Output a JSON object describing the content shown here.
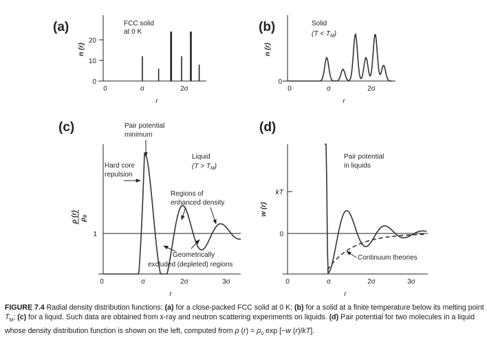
{
  "panels": {
    "a": {
      "letter": "(a)",
      "ylabel": "n (r)",
      "annotation": [
        "FCC solid",
        "at 0 K"
      ],
      "xticks": [
        "0",
        "σ",
        "2σ"
      ],
      "yticks": [
        "0",
        "10",
        "20"
      ],
      "xlabel": "r"
    },
    "b": {
      "letter": "(b)",
      "ylabel": "n (r)",
      "annotation": [
        "Solid",
        "(T < T",
        "M",
        ")"
      ],
      "xticks": [
        "0",
        "σ",
        "2σ"
      ],
      "yticks": [
        "0"
      ],
      "xlabel": "r"
    },
    "c": {
      "letter": "(c)",
      "ylabel_num": "ρ (r)",
      "ylabel_den": "ρ",
      "ylabel_den_sub": "0",
      "yticks": [
        "1"
      ],
      "xticks": [
        "0",
        "σ",
        "2σ",
        "3σ"
      ],
      "xlabel": "r",
      "ann_min": [
        "Pair potential",
        "minimum"
      ],
      "ann_hard": [
        "Hard core",
        "repulsion"
      ],
      "ann_liquid": [
        "Liquid",
        "(T > T",
        "M",
        ")"
      ],
      "ann_enh": [
        "Regions of",
        "enhanced density"
      ],
      "ann_geo": [
        "Geometrically",
        "excluded (depleted) regions"
      ]
    },
    "d": {
      "letter": "(d)",
      "ylabel": "w (r)",
      "yticks": [
        "kT",
        "0"
      ],
      "xticks": [
        "0",
        "σ",
        "2σ",
        "3σ"
      ],
      "xlabel": "r",
      "ann_pair": [
        "Pair potential",
        "in liquids"
      ],
      "ann_cont": "Continuum theories"
    }
  },
  "caption": {
    "label": "FIGURE 7.4",
    "lines": [
      "Radial density distribution functions: (a) for a close-packed FCC solid at 0 K; (b) for a solid at a finite",
      "temperature below its melting point T_M; (c) for a liquid. Such data are obtained from x-ray and neutron scattering",
      "experiments on liquids. (d) Pair potential for two molecules in a liquid whose density distribution function is shown on",
      "the left, computed from ρ (r) = ρ₀ exp [−w (r)/kT]."
    ]
  },
  "chart_data": [
    {
      "type": "bar",
      "panel": "a",
      "x": [
        "σ",
        "√2σ",
        "√3σ",
        "2σ",
        "√5σ",
        "√6σ"
      ],
      "x_sigma": [
        1.0,
        1.414,
        1.732,
        2.0,
        2.236,
        2.449
      ],
      "values": [
        12,
        6,
        24,
        12,
        24,
        8
      ],
      "xlabel": "r",
      "ylabel": "n (r)",
      "ylim": [
        0,
        25
      ]
    },
    {
      "type": "line",
      "panel": "b",
      "peaks_x_sigma": [
        1.0,
        1.414,
        1.732,
        2.0,
        2.236,
        2.449
      ],
      "peaks_height": [
        12,
        6,
        24,
        12,
        24,
        8
      ],
      "xlabel": "r",
      "ylabel": "n (r)"
    },
    {
      "type": "line",
      "panel": "c",
      "baseline": 1,
      "first_peak_x_sigma": 1.03,
      "xlabel": "r",
      "ylabel": "ρ (r)/ρ0"
    },
    {
      "type": "line",
      "panel": "d",
      "series": [
        {
          "style": "solid"
        },
        {
          "style": "dashed"
        }
      ],
      "min_x_sigma": 1.0,
      "xlabel": "r",
      "ylabel": "w (r)"
    }
  ]
}
